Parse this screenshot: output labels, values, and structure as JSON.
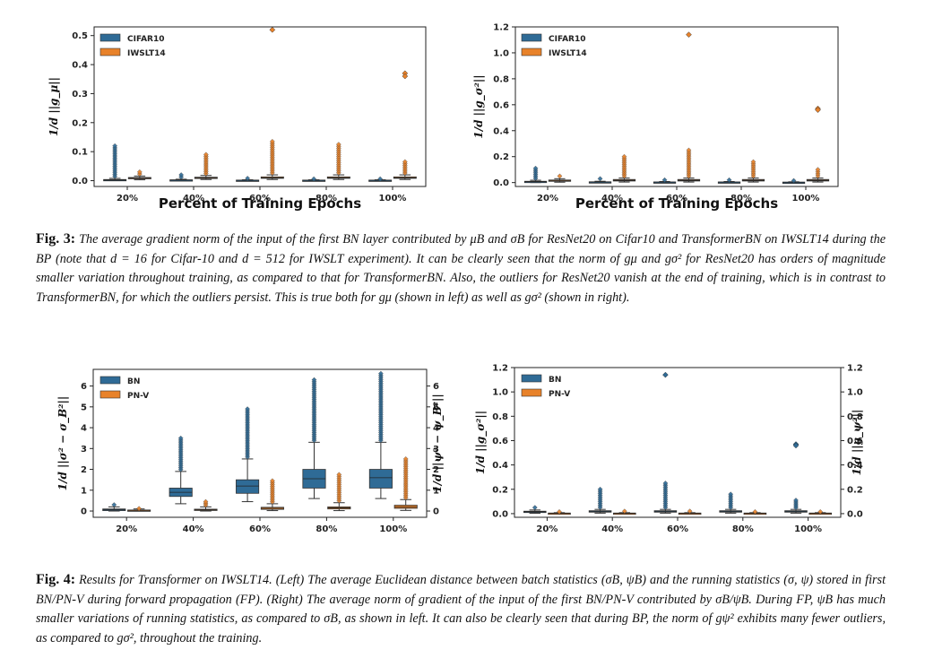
{
  "figures": [
    {
      "label": "Fig. 3:",
      "caption": "The average gradient norm of the input of the first BN layer contributed by μB and σB for ResNet20 on Cifar10 and TransformerBN on IWSLT14 during the BP (note that d = 16 for Cifar-10 and d = 512 for IWSLT experiment). It can be clearly seen that the norm of gμ and gσ² for ResNet20 has orders of magnitude smaller variation throughout training, as compared to that for TransformerBN. Also, the outliers for ResNet20 vanish at the end of training, which is in contrast to TransformerBN, for which the outliers persist. This is true both for gμ (shown in left) as well as gσ² (shown in right)."
    },
    {
      "label": "Fig. 4:",
      "caption": "Results for Transformer on IWSLT14. (Left) The average Euclidean distance between batch statistics (σB, ψB) and the running statistics (σ, ψ) stored in first BN/PN-V during forward propagation (FP). (Right) The average norm of gradient of the input of the first BN/PN-V contributed by σB/ψB. During FP, ψB has much smaller variations of running statistics, as compared to σB, as shown in left. It can also be clearly seen that during BP, the norm of gψ² exhibits many fewer outliers, as compared to gσ², throughout the training."
    }
  ],
  "colors": {
    "blue": "#2f6b96",
    "orange": "#e8822a",
    "axis": "#222222"
  },
  "chart_data": [
    {
      "type": "box",
      "title": "",
      "xlabel": "Percent of Training Epochs",
      "ylabel": "1/d ||g_μ||",
      "categories": [
        "20%",
        "40%",
        "60%",
        "80%",
        "100%"
      ],
      "ylim": [
        -0.02,
        0.53
      ],
      "yticks": [
        0.0,
        0.1,
        0.2,
        0.3,
        0.4,
        0.5
      ],
      "yticklabels": [
        "0.0",
        "0.1",
        "0.2",
        "0.3",
        "0.4",
        "0.5"
      ],
      "legend": [
        "CIFAR10",
        "IWSLT14"
      ],
      "series": [
        {
          "name": "CIFAR10",
          "color": "#2f6b96",
          "boxes": [
            {
              "q1": 0.0,
              "med": 0.002,
              "q3": 0.004,
              "wlo": 0.0,
              "whi": 0.008,
              "outlier_max": 0.12
            },
            {
              "q1": 0.0,
              "med": 0.002,
              "q3": 0.003,
              "wlo": 0.0,
              "whi": 0.005,
              "outlier_max": 0.02
            },
            {
              "q1": 0.0,
              "med": 0.001,
              "q3": 0.002,
              "wlo": 0.0,
              "whi": 0.003,
              "outlier_max": 0.008
            },
            {
              "q1": 0.0,
              "med": 0.001,
              "q3": 0.002,
              "wlo": 0.0,
              "whi": 0.003,
              "outlier_max": 0.006
            },
            {
              "q1": 0.0,
              "med": 0.001,
              "q3": 0.002,
              "wlo": 0.0,
              "whi": 0.003,
              "outlier_max": 0.006
            }
          ]
        },
        {
          "name": "IWSLT14",
          "color": "#e8822a",
          "boxes": [
            {
              "q1": 0.007,
              "med": 0.009,
              "q3": 0.011,
              "wlo": 0.003,
              "whi": 0.016,
              "outlier_max": 0.03
            },
            {
              "q1": 0.008,
              "med": 0.01,
              "q3": 0.012,
              "wlo": 0.004,
              "whi": 0.018,
              "outlier_max": 0.09
            },
            {
              "q1": 0.008,
              "med": 0.01,
              "q3": 0.013,
              "wlo": 0.004,
              "whi": 0.02,
              "outlier_max": 0.135,
              "extra": [
                0.52
              ]
            },
            {
              "q1": 0.008,
              "med": 0.01,
              "q3": 0.013,
              "wlo": 0.004,
              "whi": 0.02,
              "outlier_max": 0.125
            },
            {
              "q1": 0.008,
              "med": 0.01,
              "q3": 0.013,
              "wlo": 0.004,
              "whi": 0.02,
              "outlier_max": 0.065,
              "extra": [
                0.37,
                0.36
              ]
            }
          ]
        }
      ]
    },
    {
      "type": "box",
      "title": "",
      "xlabel": "Percent of Training Epochs",
      "ylabel": "1/d ||g_σ²||",
      "categories": [
        "20%",
        "40%",
        "60%",
        "80%",
        "100%"
      ],
      "ylim": [
        -0.03,
        1.2
      ],
      "yticks": [
        0.0,
        0.2,
        0.4,
        0.6,
        0.8,
        1.0,
        1.2
      ],
      "yticklabels": [
        "0.0",
        "0.2",
        "0.4",
        "0.6",
        "0.8",
        "1.0",
        "1.2"
      ],
      "legend": [
        "CIFAR10",
        "IWSLT14"
      ],
      "series": [
        {
          "name": "CIFAR10",
          "color": "#2f6b96",
          "boxes": [
            {
              "q1": 0.004,
              "med": 0.007,
              "q3": 0.01,
              "wlo": 0.0,
              "whi": 0.018,
              "outlier_max": 0.11
            },
            {
              "q1": 0.002,
              "med": 0.004,
              "q3": 0.006,
              "wlo": 0.0,
              "whi": 0.01,
              "outlier_max": 0.03
            },
            {
              "q1": 0.001,
              "med": 0.003,
              "q3": 0.005,
              "wlo": 0.0,
              "whi": 0.008,
              "outlier_max": 0.02
            },
            {
              "q1": 0.001,
              "med": 0.003,
              "q3": 0.005,
              "wlo": 0.0,
              "whi": 0.008,
              "outlier_max": 0.02
            },
            {
              "q1": 0.001,
              "med": 0.002,
              "q3": 0.004,
              "wlo": 0.0,
              "whi": 0.006,
              "outlier_max": 0.015
            }
          ]
        },
        {
          "name": "IWSLT14",
          "color": "#e8822a",
          "boxes": [
            {
              "q1": 0.01,
              "med": 0.015,
              "q3": 0.02,
              "wlo": 0.003,
              "whi": 0.03,
              "outlier_max": 0.05
            },
            {
              "q1": 0.012,
              "med": 0.018,
              "q3": 0.024,
              "wlo": 0.004,
              "whi": 0.035,
              "outlier_max": 0.2
            },
            {
              "q1": 0.012,
              "med": 0.018,
              "q3": 0.024,
              "wlo": 0.004,
              "whi": 0.035,
              "outlier_max": 0.25,
              "extra": [
                1.14
              ]
            },
            {
              "q1": 0.012,
              "med": 0.018,
              "q3": 0.024,
              "wlo": 0.004,
              "whi": 0.035,
              "outlier_max": 0.16
            },
            {
              "q1": 0.012,
              "med": 0.018,
              "q3": 0.024,
              "wlo": 0.004,
              "whi": 0.035,
              "outlier_max": 0.1,
              "extra": [
                0.57,
                0.56
              ]
            }
          ]
        }
      ]
    },
    {
      "type": "box",
      "title": "",
      "xlabel": "",
      "ylabel": "1/d ||σ² − σ_B²||",
      "ylabel_right": "1/d ||ψ² − ψ_B²||",
      "categories": [
        "20%",
        "40%",
        "60%",
        "80%",
        "100%"
      ],
      "ylim": [
        -0.3,
        6.8
      ],
      "yticks": [
        0,
        1,
        2,
        3,
        4,
        5,
        6
      ],
      "yticklabels": [
        "0",
        "1",
        "2",
        "3",
        "4",
        "5",
        "6"
      ],
      "legend": [
        "BN",
        "PN-V"
      ],
      "series": [
        {
          "name": "BN",
          "color": "#2f6b96",
          "boxes": [
            {
              "q1": 0.02,
              "med": 0.06,
              "q3": 0.1,
              "wlo": 0.0,
              "whi": 0.2,
              "outlier_max": 0.3
            },
            {
              "q1": 0.7,
              "med": 0.9,
              "q3": 1.1,
              "wlo": 0.35,
              "whi": 1.9,
              "outlier_max": 3.5
            },
            {
              "q1": 0.85,
              "med": 1.2,
              "q3": 1.5,
              "wlo": 0.45,
              "whi": 2.5,
              "outlier_max": 4.9
            },
            {
              "q1": 1.1,
              "med": 1.55,
              "q3": 2.0,
              "wlo": 0.6,
              "whi": 3.3,
              "outlier_max": 6.3
            },
            {
              "q1": 1.1,
              "med": 1.6,
              "q3": 2.0,
              "wlo": 0.6,
              "whi": 3.3,
              "outlier_max": 6.6
            }
          ]
        },
        {
          "name": "PN-V",
          "color": "#e8822a",
          "boxes": [
            {
              "q1": 0.01,
              "med": 0.03,
              "q3": 0.05,
              "wlo": 0.0,
              "whi": 0.1,
              "outlier_max": 0.12
            },
            {
              "q1": 0.03,
              "med": 0.06,
              "q3": 0.09,
              "wlo": 0.0,
              "whi": 0.2,
              "outlier_max": 0.45
            },
            {
              "q1": 0.08,
              "med": 0.13,
              "q3": 0.18,
              "wlo": 0.02,
              "whi": 0.35,
              "outlier_max": 1.45
            },
            {
              "q1": 0.1,
              "med": 0.15,
              "q3": 0.2,
              "wlo": 0.02,
              "whi": 0.4,
              "outlier_max": 1.75
            },
            {
              "q1": 0.13,
              "med": 0.2,
              "q3": 0.28,
              "wlo": 0.03,
              "whi": 0.55,
              "outlier_max": 2.5
            }
          ]
        }
      ]
    },
    {
      "type": "box",
      "title": "",
      "xlabel": "",
      "ylabel": "1/d ||g_σ²||",
      "ylabel_right": "1/d ||g_ψ²||",
      "categories": [
        "20%",
        "40%",
        "60%",
        "80%",
        "100%"
      ],
      "ylim": [
        -0.03,
        1.2
      ],
      "yticks": [
        0.0,
        0.2,
        0.4,
        0.6,
        0.8,
        1.0,
        1.2
      ],
      "yticklabels": [
        "0.0",
        "0.2",
        "0.4",
        "0.6",
        "0.8",
        "1.0",
        "1.2"
      ],
      "legend": [
        "BN",
        "PN-V"
      ],
      "series": [
        {
          "name": "BN",
          "color": "#2f6b96",
          "boxes": [
            {
              "q1": 0.01,
              "med": 0.015,
              "q3": 0.02,
              "wlo": 0.003,
              "whi": 0.03,
              "outlier_max": 0.05
            },
            {
              "q1": 0.012,
              "med": 0.018,
              "q3": 0.024,
              "wlo": 0.004,
              "whi": 0.035,
              "outlier_max": 0.2
            },
            {
              "q1": 0.012,
              "med": 0.018,
              "q3": 0.024,
              "wlo": 0.004,
              "whi": 0.035,
              "outlier_max": 0.25,
              "extra": [
                1.14
              ]
            },
            {
              "q1": 0.012,
              "med": 0.018,
              "q3": 0.024,
              "wlo": 0.004,
              "whi": 0.035,
              "outlier_max": 0.16
            },
            {
              "q1": 0.012,
              "med": 0.018,
              "q3": 0.024,
              "wlo": 0.004,
              "whi": 0.035,
              "outlier_max": 0.11,
              "extra": [
                0.57,
                0.56
              ]
            }
          ]
        },
        {
          "name": "PN-V",
          "color": "#e8822a",
          "boxes": [
            {
              "q1": 0.001,
              "med": 0.003,
              "q3": 0.005,
              "wlo": 0.0,
              "whi": 0.008,
              "outlier_max": 0.015
            },
            {
              "q1": 0.001,
              "med": 0.003,
              "q3": 0.005,
              "wlo": 0.0,
              "whi": 0.008,
              "outlier_max": 0.02
            },
            {
              "q1": 0.001,
              "med": 0.003,
              "q3": 0.005,
              "wlo": 0.0,
              "whi": 0.008,
              "outlier_max": 0.02
            },
            {
              "q1": 0.001,
              "med": 0.003,
              "q3": 0.005,
              "wlo": 0.0,
              "whi": 0.008,
              "outlier_max": 0.015
            },
            {
              "q1": 0.001,
              "med": 0.003,
              "q3": 0.005,
              "wlo": 0.0,
              "whi": 0.008,
              "outlier_max": 0.015
            }
          ]
        }
      ]
    }
  ]
}
